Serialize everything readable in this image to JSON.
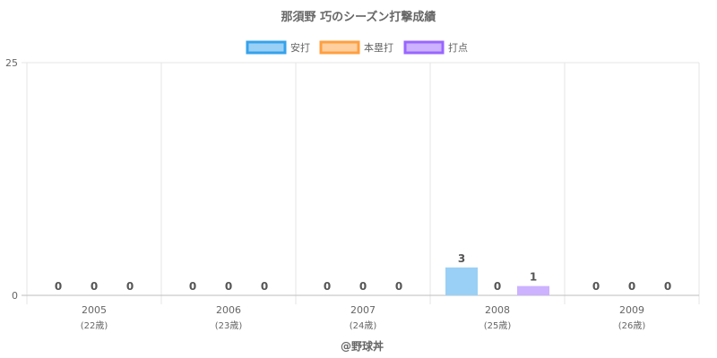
{
  "chart_data": {
    "type": "bar",
    "title": "那須野 巧のシーズン打撃成績",
    "categories": [
      "2005",
      "2006",
      "2007",
      "2008",
      "2009"
    ],
    "category_sublabels": [
      "(22歳)",
      "(23歳)",
      "(24歳)",
      "(25歳)",
      "(26歳)"
    ],
    "series": [
      {
        "name": "安打",
        "values": [
          0,
          0,
          0,
          3,
          0
        ],
        "color": "#9ad0f5",
        "border_color": "#36a2eb"
      },
      {
        "name": "本塁打",
        "values": [
          0,
          0,
          0,
          0,
          0
        ],
        "color": "#ffcf9f",
        "border_color": "#ff9f40"
      },
      {
        "name": "打点",
        "values": [
          0,
          0,
          0,
          1,
          0
        ],
        "color": "#ccb2ff",
        "border_color": "#9966ff"
      }
    ],
    "ylim": [
      0,
      25
    ],
    "yticks": [
      "0",
      "25"
    ],
    "grid": true,
    "legend_position": "top",
    "footer": "@野球丼"
  }
}
